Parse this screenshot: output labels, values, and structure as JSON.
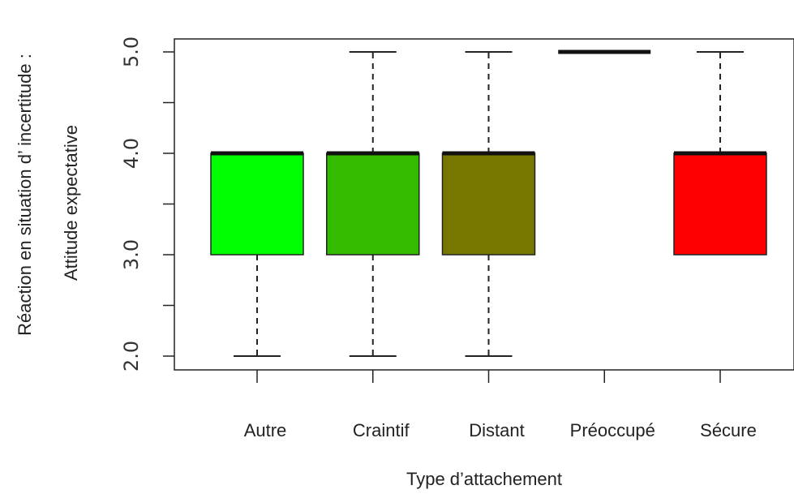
{
  "chart_data": {
    "type": "boxplot",
    "categories": [
      "Autre",
      "Craintif",
      "Distant",
      "Préoccupé",
      "Sécure"
    ],
    "boxes": [
      {
        "category": "Autre",
        "min": 2,
        "q1": 3,
        "median": 4,
        "q3": 4,
        "max": 4,
        "color": "#00ff00"
      },
      {
        "category": "Craintif",
        "min": 2,
        "q1": 3,
        "median": 4,
        "q3": 4,
        "max": 5,
        "color": "#33bb00"
      },
      {
        "category": "Distant",
        "min": 2,
        "q1": 3,
        "median": 4,
        "q3": 4,
        "max": 5,
        "color": "#777700"
      },
      {
        "category": "Préoccupé",
        "min": 5,
        "q1": 5,
        "median": 5,
        "q3": 5,
        "max": 5,
        "color": "#ffffff"
      },
      {
        "category": "Sécure",
        "min": 3,
        "q1": 3,
        "median": 4,
        "q3": 4,
        "max": 5,
        "color": "#ff0000"
      }
    ],
    "xlabel": "Type d’attachement",
    "ylabel_line1": "Réaction en situation d’   incertitude :",
    "ylabel_line2": "Attitude expectative",
    "ylim": [
      2,
      5
    ],
    "yticks": [
      2.0,
      2.5,
      3.0,
      3.5,
      4.0,
      4.5,
      5.0
    ],
    "ytick_labels": [
      "2.0",
      "",
      "3.0",
      "",
      "4.0",
      "",
      "5.0"
    ]
  }
}
